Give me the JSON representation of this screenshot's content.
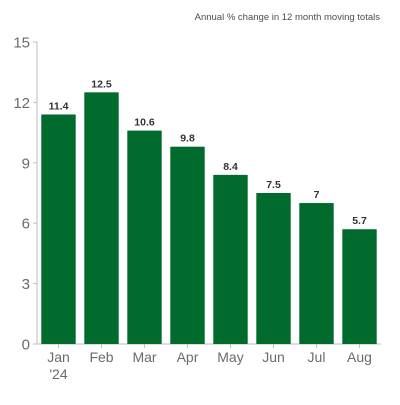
{
  "chart_data": {
    "type": "bar",
    "subtitle": "Annual % change in 12 month moving totals",
    "categories": [
      "Jan",
      "Feb",
      "Mar",
      "Apr",
      "May",
      "Jun",
      "Jul",
      "Aug"
    ],
    "category_sublabels": [
      "'24",
      "",
      "",
      "",
      "",
      "",
      "",
      ""
    ],
    "values": [
      11.4,
      12.5,
      10.6,
      9.8,
      8.4,
      7.5,
      7,
      5.7
    ],
    "value_labels": [
      "11.4",
      "12.5",
      "10.6",
      "9.8",
      "8.4",
      "7.5",
      "7",
      "5.7"
    ],
    "yticks": [
      "0",
      "3",
      "6",
      "9",
      "12",
      "15"
    ],
    "ytick_values": [
      0,
      3,
      6,
      9,
      12,
      15
    ],
    "ylim": [
      0,
      15
    ],
    "grid": false,
    "legend": "none",
    "colors": {
      "bar": "#006b2d",
      "axis": "#bdbdbd",
      "tick_text": "#6b6b6b",
      "value_text": "#333333",
      "subtitle_text": "#4d4d4d"
    }
  }
}
